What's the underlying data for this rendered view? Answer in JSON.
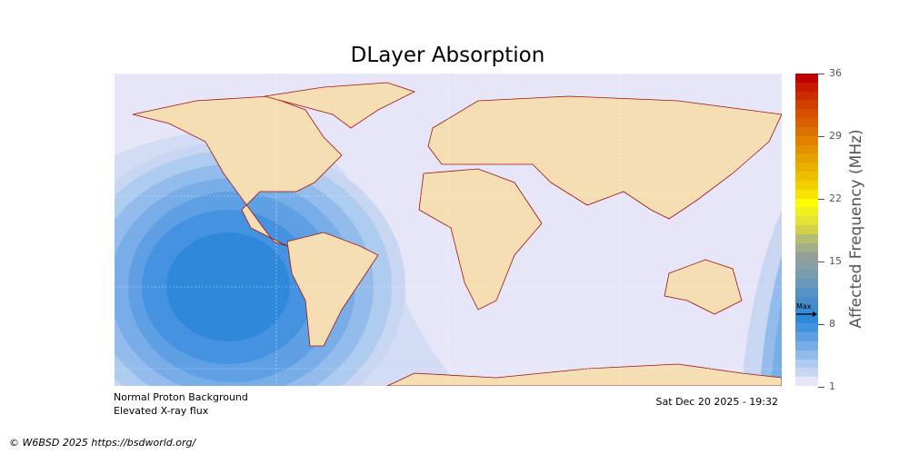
{
  "title": "DLayer Absorption",
  "colorbar": {
    "label": "Affected Frequency (MHz)",
    "ticks": [
      "36",
      "29",
      "22",
      "15",
      "8",
      "1"
    ],
    "range": [
      1,
      36
    ],
    "colors_top_to_bottom": [
      "#c00000",
      "#c71800",
      "#cc2c00",
      "#d24000",
      "#d65000",
      "#d96000",
      "#dc7000",
      "#e28000",
      "#e59000",
      "#e8a000",
      "#e9b000",
      "#ecc000",
      "#f2d000",
      "#f6e400",
      "#ffff00",
      "#f0f01c",
      "#e4e235",
      "#d3d04a",
      "#b5bc73",
      "#a4ae88",
      "#939f98",
      "#899fa6",
      "#7a9cae",
      "#6a98b8",
      "#5891c4",
      "#4a8ccc",
      "#3a8bd6",
      "#2f88da",
      "#4593e0",
      "#5fa0e4",
      "#78ade8",
      "#93bced",
      "#aecbf0",
      "#c9d6f2",
      "#e6e6f8"
    ],
    "max_marker": {
      "label": "Max",
      "value": 9
    }
  },
  "status": {
    "proton": "Normal Proton Background",
    "xray": "Elevated X-ray flux",
    "timestamp": "Sat Dec 20 2025 - 19:32"
  },
  "credit": "© W6BSD 2025 https://bsdworld.org/",
  "colors": {
    "ocean": "#e6e6f8",
    "land": "#f5deb3",
    "coast": "#a01010"
  }
}
